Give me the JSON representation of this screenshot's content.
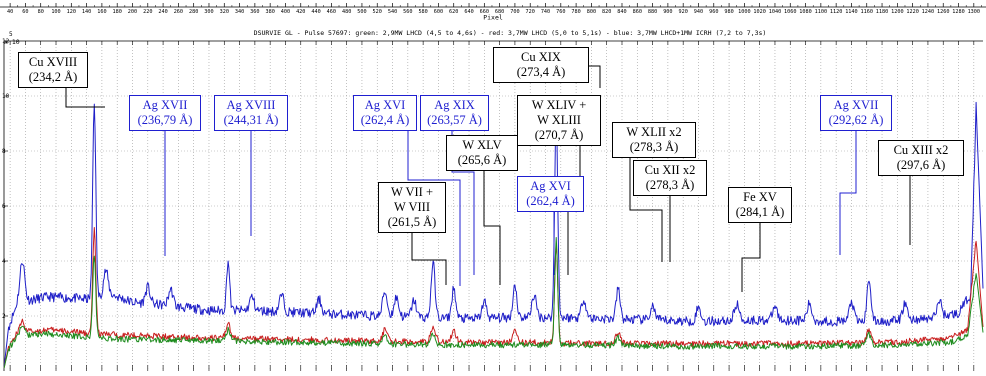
{
  "chart_data": {
    "type": "line",
    "title": "DSURVIE GL - Pulse 57697: green: 2,9MW LHCD (4,5 to 4,6s) - red: 3,7MW LHCD (5,0 to 5,1s) - blue: 3,7MW LHCD+1MW ICRH (7,2 to 7,3s)",
    "xlabel": "Pixel",
    "x_ticks": [
      40,
      60,
      80,
      100,
      120,
      140,
      160,
      180,
      200,
      220,
      240,
      260,
      280,
      300,
      320,
      340,
      360,
      380,
      400,
      420,
      440,
      460,
      480,
      500,
      520,
      540,
      560,
      580,
      600,
      620,
      640,
      660,
      680,
      700,
      720,
      740,
      760,
      780,
      800,
      820,
      840,
      860,
      880,
      900,
      920,
      940,
      960,
      980,
      1000,
      1020,
      1040,
      1060,
      1080,
      1100,
      1120,
      1140,
      1160,
      1180,
      1200,
      1220,
      1240,
      1260,
      1280,
      1300
    ],
    "x_tick_labels": [
      "40",
      "60",
      "80",
      "100",
      "120",
      "140",
      "160",
      "180",
      "200",
      "220",
      "240",
      "260",
      "280",
      "300",
      "320",
      "340",
      "360",
      "380",
      "400",
      "420",
      "440",
      "460",
      "480",
      "500",
      "520",
      "540",
      "560",
      "580",
      "600",
      "620",
      "640",
      "660",
      "680",
      "700",
      "720",
      "740",
      "760",
      "780",
      "800",
      "820",
      "840",
      "860",
      "880",
      "900",
      "920",
      "940",
      "960",
      "980",
      "1000",
      "1020",
      "1040",
      "1060",
      "1080",
      "1100",
      "1120",
      "1140",
      "1160",
      "1180",
      "1200",
      "1220",
      "1240",
      "1260",
      "1280",
      "1300"
    ],
    "xlim": [
      32,
      1312
    ],
    "y_ticks": [
      2,
      4,
      6,
      8,
      10,
      12
    ],
    "y_tick_labels": [
      "2",
      "4",
      "6",
      "8",
      "10",
      "12"
    ],
    "y_exponent": "x 10",
    "y_exponent_power": "5",
    "ylim": [
      0,
      12
    ],
    "grid": true,
    "series": [
      {
        "color": "#1f1fc8",
        "baseline": [
          [
            32,
            0.1
          ],
          [
            38,
            1.6
          ],
          [
            50,
            2.5
          ],
          [
            90,
            2.7
          ],
          [
            150,
            2.6
          ],
          [
            170,
            2.8
          ],
          [
            200,
            2.5
          ],
          [
            240,
            2.4
          ],
          [
            300,
            2.2
          ],
          [
            360,
            2.2
          ],
          [
            440,
            2.1
          ],
          [
            520,
            2.0
          ],
          [
            580,
            1.95
          ],
          [
            640,
            1.9
          ],
          [
            700,
            1.95
          ],
          [
            760,
            1.95
          ],
          [
            820,
            1.9
          ],
          [
            880,
            1.85
          ],
          [
            940,
            1.8
          ],
          [
            1000,
            1.85
          ],
          [
            1060,
            1.85
          ],
          [
            1120,
            1.8
          ],
          [
            1180,
            1.8
          ],
          [
            1240,
            1.9
          ],
          [
            1280,
            2.1
          ],
          [
            1296,
            2.8
          ],
          [
            1303,
            9.6
          ],
          [
            1308,
            6.0
          ],
          [
            1312,
            3.0
          ]
        ],
        "peaks": [
          [
            56,
            1.5,
            3
          ],
          [
            150,
            7.2,
            2
          ],
          [
            165,
            0.9,
            3
          ],
          [
            220,
            0.6,
            3
          ],
          [
            250,
            0.6,
            3
          ],
          [
            325,
            1.8,
            2
          ],
          [
            356,
            0.5,
            3
          ],
          [
            395,
            0.6,
            3
          ],
          [
            444,
            0.5,
            3
          ],
          [
            530,
            0.9,
            3
          ],
          [
            545,
            0.7,
            3
          ],
          [
            568,
            0.6,
            3
          ],
          [
            593,
            2.0,
            2.5
          ],
          [
            620,
            1.1,
            2.5
          ],
          [
            660,
            0.6,
            3
          ],
          [
            700,
            1.2,
            2.5
          ],
          [
            725,
            0.8,
            3
          ],
          [
            754,
            7.5,
            2
          ],
          [
            790,
            0.7,
            3
          ],
          [
            835,
            1.1,
            2.5
          ],
          [
            880,
            0.5,
            3
          ],
          [
            940,
            0.5,
            3
          ],
          [
            990,
            0.6,
            3
          ],
          [
            1040,
            0.5,
            3
          ],
          [
            1085,
            0.6,
            3
          ],
          [
            1140,
            0.7,
            3
          ],
          [
            1163,
            1.6,
            2.5
          ],
          [
            1210,
            0.6,
            3
          ],
          [
            1255,
            0.6,
            3
          ]
        ]
      },
      {
        "color": "#c81e1e",
        "baseline": [
          [
            32,
            0.1
          ],
          [
            38,
            0.9
          ],
          [
            50,
            1.4
          ],
          [
            90,
            1.5
          ],
          [
            150,
            1.35
          ],
          [
            200,
            1.3
          ],
          [
            300,
            1.2
          ],
          [
            400,
            1.15
          ],
          [
            500,
            1.1
          ],
          [
            600,
            1.05
          ],
          [
            700,
            1.05
          ],
          [
            800,
            1.0
          ],
          [
            900,
            1.0
          ],
          [
            1000,
            1.0
          ],
          [
            1100,
            1.0
          ],
          [
            1200,
            1.05
          ],
          [
            1270,
            1.2
          ],
          [
            1292,
            1.5
          ],
          [
            1303,
            4.8
          ],
          [
            1312,
            1.6
          ]
        ],
        "peaks": [
          [
            56,
            0.4,
            3
          ],
          [
            150,
            3.8,
            2
          ],
          [
            325,
            0.5,
            3
          ],
          [
            530,
            0.4,
            3
          ],
          [
            593,
            0.6,
            3
          ],
          [
            620,
            0.4,
            3
          ],
          [
            700,
            0.4,
            3
          ],
          [
            754,
            3.6,
            2
          ],
          [
            835,
            0.4,
            3
          ],
          [
            1163,
            0.5,
            3
          ]
        ]
      },
      {
        "color": "#1e8c1e",
        "baseline": [
          [
            32,
            0.1
          ],
          [
            38,
            0.8
          ],
          [
            50,
            1.3
          ],
          [
            90,
            1.35
          ],
          [
            150,
            1.2
          ],
          [
            200,
            1.15
          ],
          [
            300,
            1.1
          ],
          [
            400,
            1.05
          ],
          [
            500,
            1.0
          ],
          [
            600,
            0.95
          ],
          [
            700,
            0.95
          ],
          [
            800,
            0.95
          ],
          [
            900,
            0.9
          ],
          [
            1000,
            0.9
          ],
          [
            1100,
            0.9
          ],
          [
            1200,
            0.95
          ],
          [
            1270,
            1.05
          ],
          [
            1292,
            1.3
          ],
          [
            1303,
            3.6
          ],
          [
            1312,
            1.4
          ]
        ],
        "peaks": [
          [
            56,
            0.3,
            3
          ],
          [
            150,
            3.0,
            2
          ],
          [
            325,
            0.4,
            3
          ],
          [
            530,
            0.3,
            3
          ],
          [
            593,
            0.4,
            3
          ],
          [
            754,
            3.8,
            2
          ],
          [
            835,
            0.3,
            3
          ],
          [
            1163,
            0.4,
            3
          ]
        ]
      }
    ],
    "annotations": [
      {
        "line1": "Cu XVIII",
        "line2": "(234,2 Å)",
        "color": "black",
        "target_x": 150
      },
      {
        "line1": "Ag XVII",
        "line2": "(236,79 Å)",
        "color": "blue",
        "target_x": 196
      },
      {
        "line1": "Ag XVIII",
        "line2": "(244,31 Å)",
        "color": "blue",
        "target_x": 325
      },
      {
        "line1": "Ag XVI",
        "line2": "(262,4 Å)",
        "color": "blue",
        "target_x": 592
      },
      {
        "line1": "Ag XIX",
        "line2": "(263,57 Å)",
        "color": "blue",
        "target_x": 613
      },
      {
        "line1": "W XLV",
        "line2": "(265,6 Å)",
        "color": "black",
        "target_x": 634
      },
      {
        "line1": "W VII +",
        "line2": "W VIII",
        "line3": "(261,5 Å)",
        "color": "black",
        "target_x": 574
      },
      {
        "line1": "Cu XIX",
        "line2": "(273,4 Å)",
        "color": "black",
        "target_x": 754
      },
      {
        "line1": "W XLIV +",
        "line2": "W XLIII",
        "line3": "(270,7 Å)",
        "color": "black",
        "target_x": 722
      },
      {
        "line1": "Ag XVI",
        "line2": "(262,4 Å)",
        "color": "blue",
        "target_x": 702
      },
      {
        "line1": "W XLII x2",
        "line2": "(278,3 Å)",
        "color": "black",
        "target_x": 835
      },
      {
        "line1": "Cu XII x2",
        "line2": "(278,3 Å)",
        "color": "black",
        "target_x": 838
      },
      {
        "line1": "Fe XV",
        "line2": "(284,1 Å)",
        "color": "black",
        "target_x": 935
      },
      {
        "line1": "Ag XVII",
        "line2": "(292,62 Å)",
        "color": "blue",
        "target_x": 1060
      },
      {
        "line1": "Cu XIII x2",
        "line2": "(297,6 Å)",
        "color": "black",
        "target_x": 1158
      }
    ]
  },
  "colors": {
    "black": "#000000",
    "blue": "#1f1fd0",
    "grid": "#9a9a9a"
  }
}
